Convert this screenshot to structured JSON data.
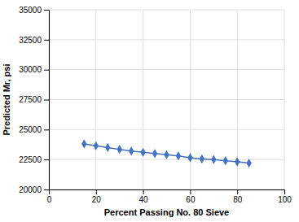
{
  "chart_data": {
    "type": "line",
    "x": [
      15,
      20,
      25,
      30,
      35,
      40,
      45,
      50,
      55,
      60,
      65,
      70,
      75,
      80,
      85
    ],
    "values": [
      23800,
      23650,
      23500,
      23350,
      23200,
      23100,
      23000,
      22900,
      22800,
      22650,
      22550,
      22500,
      22400,
      22300,
      22200
    ],
    "xlim": [
      0,
      100
    ],
    "ylim": [
      20000,
      35000
    ],
    "xticks": [
      0,
      20,
      40,
      60,
      80,
      100
    ],
    "yticks": [
      20000,
      22500,
      25000,
      27500,
      30000,
      32500,
      35000
    ],
    "xlabel": "Percent Passing No. 80 Sieve",
    "ylabel": "Predicted Mr, psi",
    "color": "#4472C4",
    "marker": "diamond",
    "grid": true
  }
}
